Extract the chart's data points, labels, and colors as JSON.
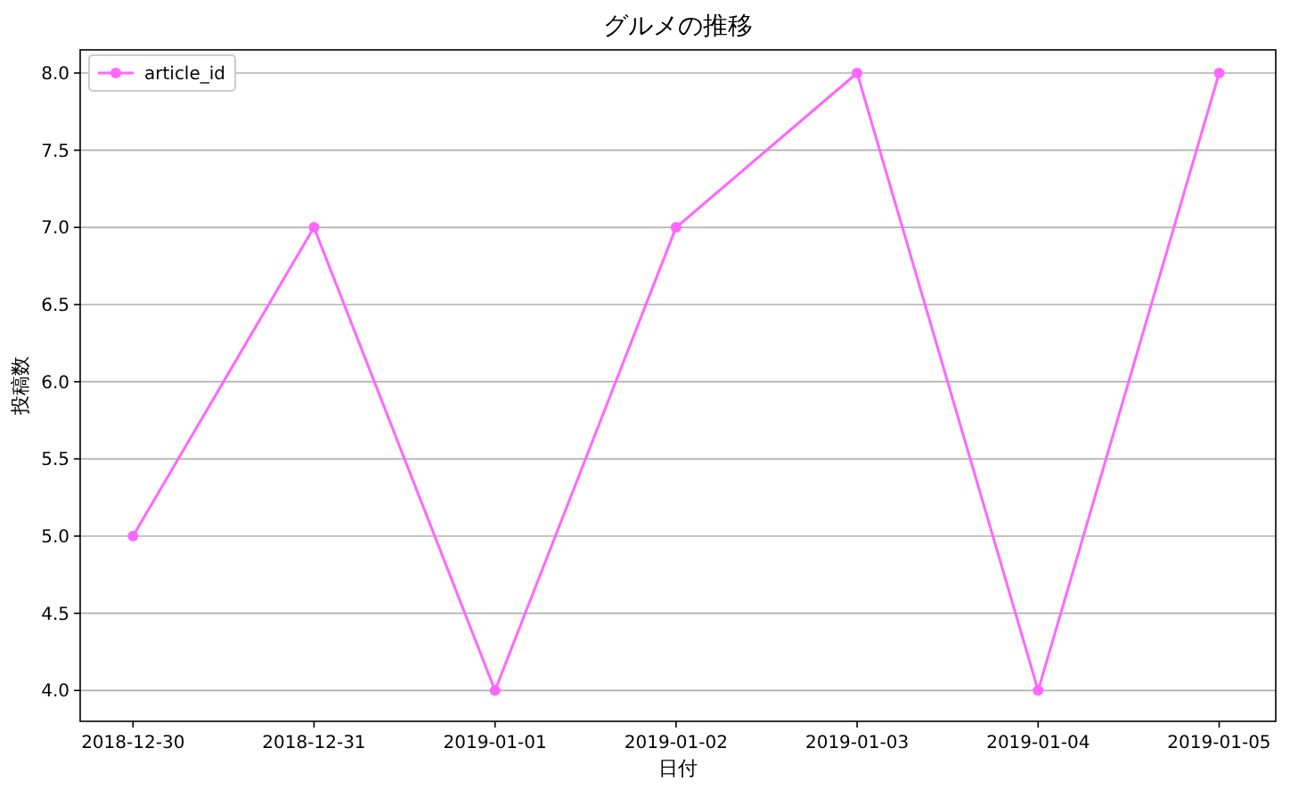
{
  "chart_data": {
    "type": "line",
    "title": "グルメの推移",
    "xlabel": "日付",
    "ylabel": "投稿数",
    "x": [
      "2018-12-30",
      "2018-12-31",
      "2019-01-01",
      "2019-01-02",
      "2019-01-03",
      "2019-01-04",
      "2019-01-05"
    ],
    "series": [
      {
        "name": "article_id",
        "color": "#ff66ff",
        "values": [
          5,
          7,
          4,
          7,
          8,
          4,
          8
        ]
      }
    ],
    "xlim": [
      "2018-12-29T17:00",
      "2019-01-05T07:30"
    ],
    "xticks": [
      "2018-12-30",
      "2018-12-31",
      "2019-01-01",
      "2019-01-02",
      "2019-01-03",
      "2019-01-04",
      "2019-01-05"
    ],
    "ylim": [
      3.8,
      8.15
    ],
    "yticks": [
      {
        "value": 4,
        "label": "4.0"
      },
      {
        "value": 4.5,
        "label": "4.5"
      },
      {
        "value": 5,
        "label": "5.0"
      },
      {
        "value": 5.5,
        "label": "5.5"
      },
      {
        "value": 6,
        "label": "6.0"
      },
      {
        "value": 6.5,
        "label": "6.5"
      },
      {
        "value": 7,
        "label": "7.0"
      },
      {
        "value": 7.5,
        "label": "7.5"
      },
      {
        "value": 8,
        "label": "8.0"
      }
    ],
    "grid": "y",
    "legend": "top left",
    "marker": "circle",
    "line_style": "solid"
  }
}
